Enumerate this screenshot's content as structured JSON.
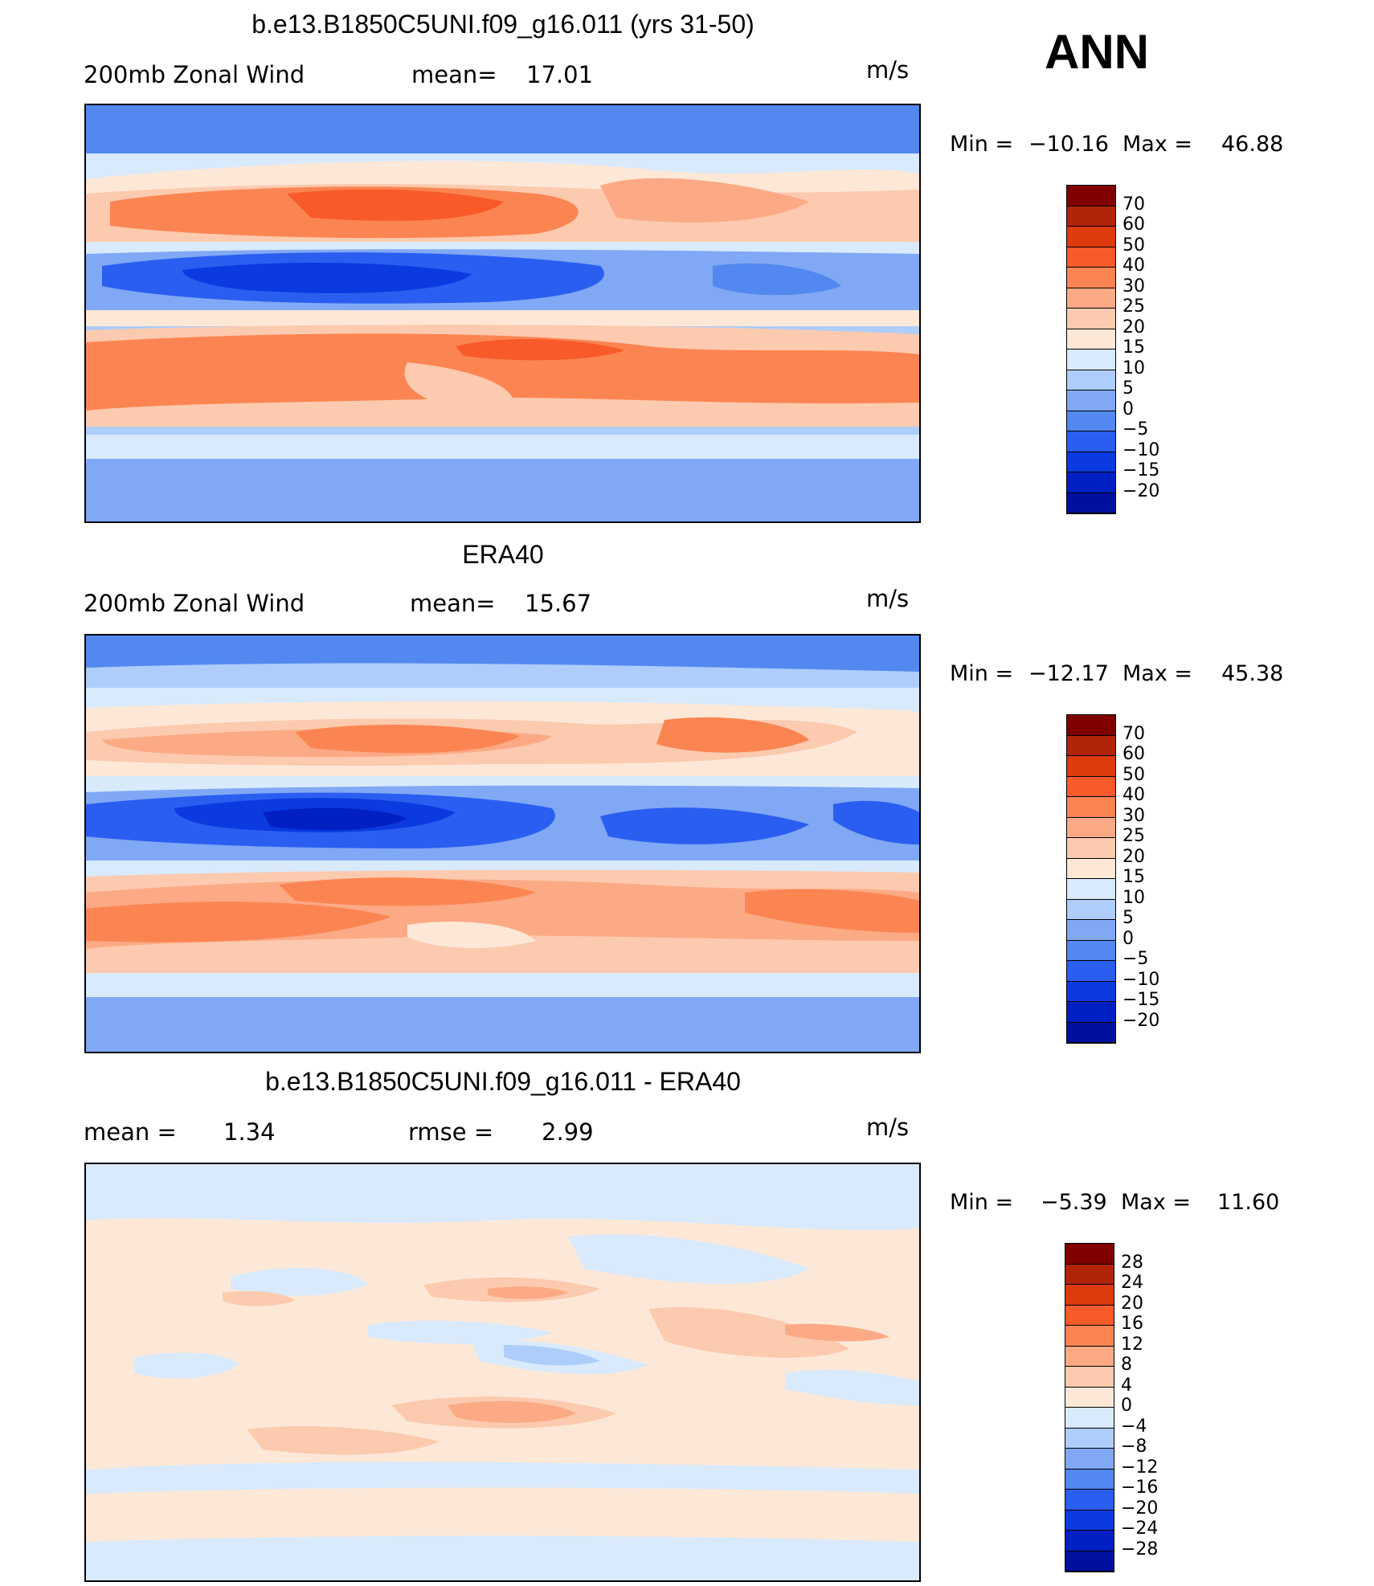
{
  "season": "ANN",
  "units": "m/s",
  "palette": {
    "main": [
      "#000080",
      "#00109e",
      "#0020c4",
      "#0a3ae0",
      "#2a5ef0",
      "#5288ef",
      "#80a8f4",
      "#aecdfa",
      "#d8eafb",
      "#fde8d8",
      "#fccaaf",
      "#fcaa86",
      "#fb8552",
      "#f85a2a",
      "#dd3a0e",
      "#b22408",
      "#800000"
    ],
    "diff": [
      "#000080",
      "#00109e",
      "#0020c4",
      "#0a3ae0",
      "#2a5ef0",
      "#5288ef",
      "#80a8f4",
      "#aecdfa",
      "#d8eafb",
      "#fde8d8",
      "#fccaaf",
      "#fcaa86",
      "#fb8552",
      "#f85a2a",
      "#dd3a0e",
      "#b22408",
      "#800000"
    ]
  },
  "panels": [
    {
      "id": "model",
      "title": "b.e13.B1850C5UNI.f09_g16.011 (yrs 31-50)",
      "variable": "200mb Zonal Wind",
      "stat1_label": "mean=",
      "stat1_value": "17.01",
      "units": "m/s",
      "min_label": "Min  =",
      "min_value": "−10.16",
      "max_label": "Max  =",
      "max_value": "46.88",
      "colorbar_labels": [
        "70",
        "60",
        "50",
        "40",
        "30",
        "25",
        "20",
        "15",
        "10",
        "5",
        "0",
        "−5",
        "−10",
        "−15",
        "−20"
      ]
    },
    {
      "id": "obs",
      "title": "ERA40",
      "variable": "200mb Zonal Wind",
      "stat1_label": "mean=",
      "stat1_value": "15.67",
      "units": "m/s",
      "min_label": "Min  =",
      "min_value": "−12.17",
      "max_label": "Max  =",
      "max_value": "45.38",
      "colorbar_labels": [
        "70",
        "60",
        "50",
        "40",
        "30",
        "25",
        "20",
        "15",
        "10",
        "5",
        "0",
        "−5",
        "−10",
        "−15",
        "−20"
      ]
    },
    {
      "id": "diff",
      "title": "b.e13.B1850C5UNI.f09_g16.011 - ERA40",
      "stat1_label": "mean  =",
      "stat1_value": "1.34",
      "stat2_label": "rmse  =",
      "stat2_value": "2.99",
      "units": "m/s",
      "min_label": "Min  =",
      "min_value": "−5.39",
      "max_label": "Max  =",
      "max_value": "11.60",
      "colorbar_labels": [
        "28",
        "24",
        "20",
        "16",
        "12",
        "8",
        "4",
        "0",
        "−4",
        "−8",
        "−12",
        "−16",
        "−20",
        "−24",
        "−28"
      ]
    }
  ]
}
